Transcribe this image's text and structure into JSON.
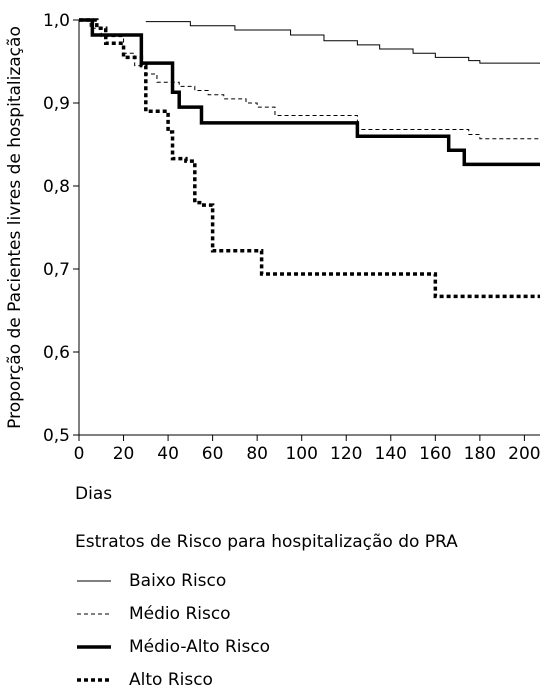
{
  "chart_data": {
    "type": "line",
    "subtype": "kaplan-meier-step",
    "xlabel": "Dias",
    "ylabel": "Proporção de Pacientes livres de hospitalização",
    "xlim": [
      0,
      207
    ],
    "ylim": [
      0.5,
      1.0
    ],
    "xticks": [
      0,
      20,
      40,
      60,
      80,
      100,
      120,
      140,
      160,
      180,
      200
    ],
    "xtick_labels": [
      "0",
      "20",
      "40",
      "60",
      "80",
      "100",
      "120",
      "140",
      "160",
      "180",
      "200"
    ],
    "yticks": [
      0.5,
      0.6,
      0.7,
      0.8,
      0.9,
      1.0
    ],
    "ytick_labels": [
      "0,5",
      "0,6",
      "0,7",
      "0,8",
      "0,9",
      "1,0"
    ],
    "legend_title": "Estratos de Risco para hospitalização do PRA",
    "grid": false,
    "series": [
      {
        "name": "Baixo Risco",
        "style": "thin-solid",
        "x": [
          30,
          50,
          70,
          95,
          110,
          125,
          135,
          150,
          160,
          175,
          180,
          207
        ],
        "y": [
          0.998,
          0.993,
          0.988,
          0.982,
          0.975,
          0.97,
          0.965,
          0.96,
          0.955,
          0.951,
          0.948,
          0.948
        ]
      },
      {
        "name": "Médio Risco",
        "style": "thin-dashed",
        "x": [
          0,
          5,
          10,
          20,
          25,
          30,
          35,
          45,
          52,
          58,
          65,
          75,
          80,
          88,
          125,
          175,
          180,
          207
        ],
        "y": [
          1.0,
          0.99,
          0.98,
          0.96,
          0.945,
          0.935,
          0.925,
          0.92,
          0.915,
          0.91,
          0.905,
          0.9,
          0.895,
          0.885,
          0.868,
          0.862,
          0.857,
          0.857
        ]
      },
      {
        "name": "Médio-Alto Risco",
        "style": "thick-solid",
        "x": [
          0,
          6,
          15,
          28,
          33,
          42,
          45,
          50,
          55,
          125,
          166,
          173,
          207
        ],
        "y": [
          1.0,
          0.982,
          0.982,
          0.948,
          0.948,
          0.913,
          0.895,
          0.895,
          0.876,
          0.86,
          0.843,
          0.826,
          0.826
        ]
      },
      {
        "name": "Alto Risco",
        "style": "thick-dotted",
        "x": [
          0,
          8,
          12,
          20,
          28,
          30,
          35,
          40,
          42,
          48,
          52,
          56,
          60,
          70,
          82,
          160,
          207
        ],
        "y": [
          1.0,
          0.99,
          0.972,
          0.955,
          0.945,
          0.89,
          0.89,
          0.865,
          0.833,
          0.83,
          0.78,
          0.777,
          0.722,
          0.722,
          0.694,
          0.667,
          0.667
        ]
      }
    ]
  }
}
